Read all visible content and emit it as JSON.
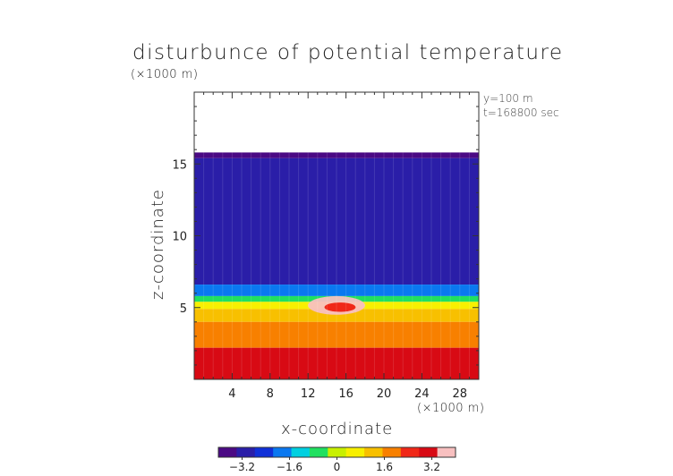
{
  "chart_data": {
    "type": "heatmap",
    "title": "disturbunce of potential temperature",
    "xlabel": "x-coordinate",
    "ylabel": "z-coordinate",
    "x_unit": "(×1000 m)",
    "y_unit": "(×1000 m)",
    "annotations": [
      "y=100 m",
      "t=168800 sec"
    ],
    "xlim": [
      0,
      30
    ],
    "ylim": [
      0,
      20
    ],
    "x_ticks": [
      4,
      8,
      12,
      16,
      20,
      24,
      28
    ],
    "y_ticks": [
      5,
      10,
      15
    ],
    "colorbar": {
      "ticks": [
        -3.2,
        -1.6,
        0,
        1.6,
        3.2
      ],
      "tick_labels": [
        "−3.2",
        "−1.6",
        "0",
        "1.6",
        "3.2"
      ],
      "range": [
        -4,
        4
      ],
      "colors": [
        "#4b0a84",
        "#2a1ea8",
        "#1030d8",
        "#0a78f0",
        "#00d0e0",
        "#20e060",
        "#c8f000",
        "#f8f000",
        "#f8c000",
        "#f88000",
        "#f02818",
        "#d80a14",
        "#f8c0c0"
      ]
    },
    "domain_top_km": 15.8,
    "layers": [
      {
        "z_from": 15.4,
        "z_to": 15.8,
        "value": -3.6
      },
      {
        "z_from": 6.6,
        "z_to": 15.4,
        "value": -2.8
      },
      {
        "z_from": 5.8,
        "z_to": 6.6,
        "value": -1.8
      },
      {
        "z_from": 5.4,
        "z_to": 5.8,
        "value": -0.6
      },
      {
        "z_from": 4.9,
        "z_to": 5.4,
        "value": 0.6
      },
      {
        "z_from": 4.0,
        "z_to": 4.9,
        "value": 1.4
      },
      {
        "z_from": 2.2,
        "z_to": 4.0,
        "value": 2.0
      },
      {
        "z_from": 0.0,
        "z_to": 2.2,
        "value": 3.0
      }
    ],
    "features": [
      {
        "label": "warm intrusion",
        "x_range": [
          12,
          18
        ],
        "z_range": [
          4.5,
          5.8
        ],
        "value": 3.6
      }
    ]
  }
}
